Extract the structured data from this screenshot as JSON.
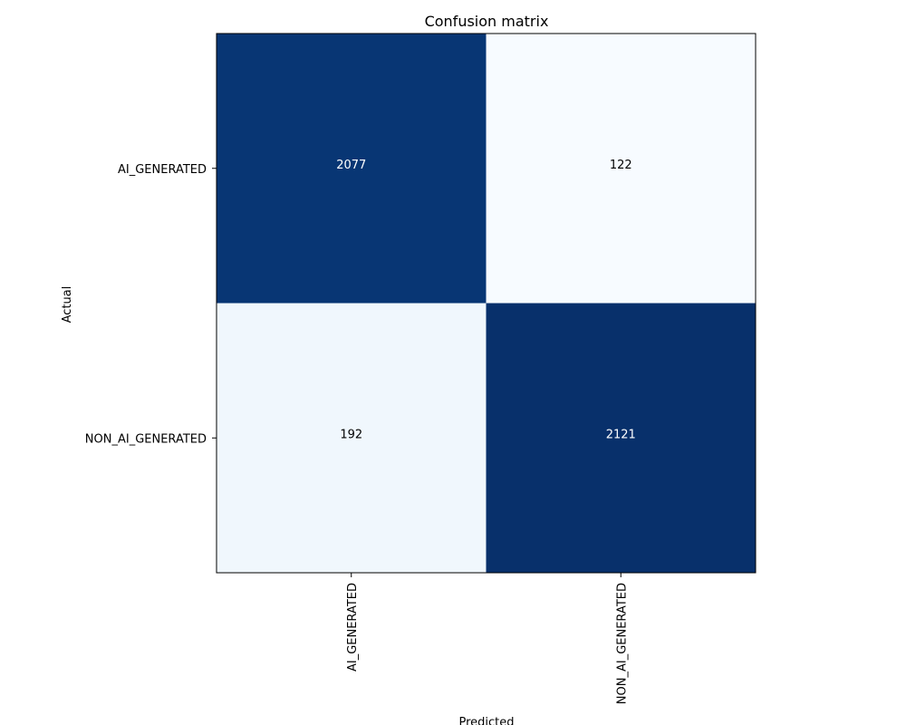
{
  "chart_data": {
    "type": "heatmap",
    "title": "Confusion matrix",
    "xlabel": "Predicted",
    "ylabel": "Actual",
    "x_categories": [
      "AI_GENERATED",
      "NON_AI_GENERATED"
    ],
    "y_categories": [
      "AI_GENERATED",
      "NON_AI_GENERATED"
    ],
    "values": [
      [
        2077,
        122
      ],
      [
        192,
        2121
      ]
    ],
    "colormap": "Blues",
    "colors": {
      "high": "#08306b",
      "low": "#f7fbff",
      "low_alt": "#f0f5fc",
      "text_on_dark": "#ffffff",
      "text_on_light": "#000000"
    },
    "grid": false,
    "legend": "none"
  }
}
